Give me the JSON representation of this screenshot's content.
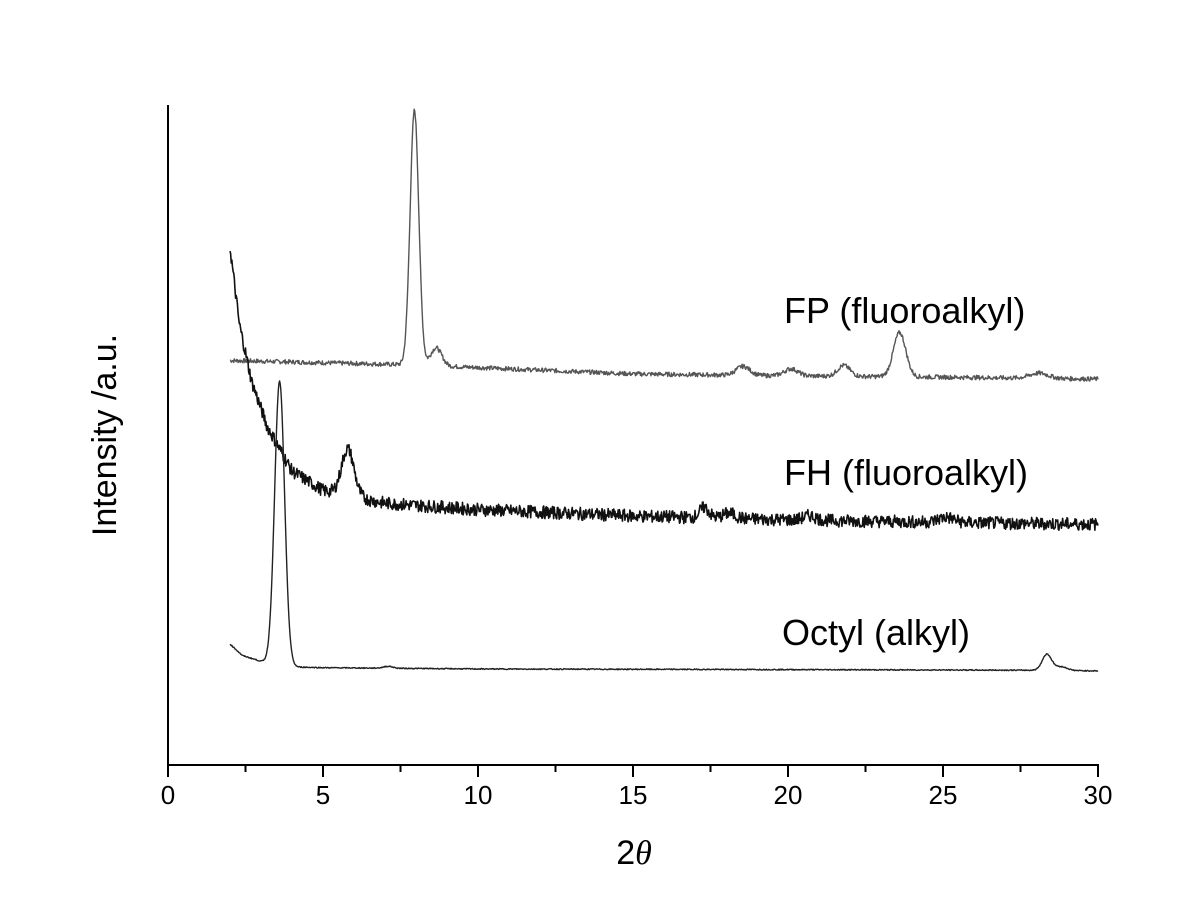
{
  "chart_data": {
    "type": "line",
    "title": "",
    "xlabel": "2θ",
    "xlabel_parts": {
      "number": "2",
      "symbol": "θ"
    },
    "ylabel": "Intensity /a.u.",
    "xlim": [
      0,
      30
    ],
    "x_major_ticks": [
      0,
      5,
      10,
      15,
      20,
      25,
      30
    ],
    "x_tick_labels": [
      "0",
      "5",
      "10",
      "15",
      "20",
      "25",
      "30"
    ],
    "x_minor_step": 2.5,
    "y_scale": "arbitrary units, vertically offset curves",
    "ylim": [
      0,
      100
    ],
    "grid": false,
    "legend": "none",
    "line_colors": {
      "FP": "#555555",
      "FH": "#111111",
      "Octyl": "#222222"
    },
    "series": [
      {
        "name": "FP (fluoroalkyl)",
        "baseline": [
          [
            2.0,
            59.3
          ],
          [
            8.0,
            58.6
          ],
          [
            15.0,
            57.2
          ],
          [
            20.0,
            56.9
          ],
          [
            25.0,
            56.7
          ],
          [
            30.0,
            56.4
          ]
        ],
        "noise": 0.35,
        "peaks": [
          {
            "x": 7.95,
            "height": 39.8,
            "width": 0.14
          },
          {
            "x": 8.65,
            "height": 2.8,
            "width": 0.18
          },
          {
            "x": 18.55,
            "height": 1.4,
            "width": 0.22
          },
          {
            "x": 20.1,
            "height": 1.1,
            "width": 0.22
          },
          {
            "x": 21.8,
            "height": 1.7,
            "width": 0.2
          },
          {
            "x": 23.6,
            "height": 6.9,
            "width": 0.2
          },
          {
            "x": 28.1,
            "height": 0.8,
            "width": 0.3
          }
        ]
      },
      {
        "name": "FH (fluoroalkyl)",
        "baseline": [
          [
            2.0,
            77.0
          ],
          [
            2.3,
            65.0
          ],
          [
            2.7,
            56.0
          ],
          [
            3.2,
            49.0
          ],
          [
            4.0,
            42.0
          ],
          [
            5.0,
            39.0
          ],
          [
            7.0,
            37.0
          ],
          [
            10.0,
            36.0
          ],
          [
            15.0,
            35.0
          ],
          [
            20.0,
            34.4
          ],
          [
            25.0,
            34.0
          ],
          [
            30.0,
            33.7
          ]
        ],
        "noise": 1.0,
        "peaks": [
          {
            "x": 5.8,
            "height": 7.3,
            "width": 0.2
          },
          {
            "x": 17.3,
            "height": 1.6,
            "width": 0.15
          },
          {
            "x": 18.1,
            "height": 0.8,
            "width": 0.2
          },
          {
            "x": 20.7,
            "height": 0.7,
            "width": 0.2
          },
          {
            "x": 25.1,
            "height": 0.8,
            "width": 0.25
          }
        ]
      },
      {
        "name": "Octyl (alkyl)",
        "baseline": [
          [
            2.0,
            15.0
          ],
          [
            2.4,
            13.2
          ],
          [
            3.0,
            12.3
          ],
          [
            4.2,
            11.4
          ],
          [
            5.0,
            11.3
          ],
          [
            10.0,
            11.1
          ],
          [
            20.0,
            11.0
          ],
          [
            28.0,
            10.9
          ],
          [
            30.0,
            10.8
          ]
        ],
        "noise": 0.08,
        "peaks": [
          {
            "x": 3.6,
            "height": 44.2,
            "width": 0.16
          },
          {
            "x": 7.1,
            "height": 0.3,
            "width": 0.15
          },
          {
            "x": 28.35,
            "height": 2.5,
            "width": 0.15
          },
          {
            "x": 28.8,
            "height": 0.6,
            "width": 0.2
          }
        ]
      }
    ]
  }
}
